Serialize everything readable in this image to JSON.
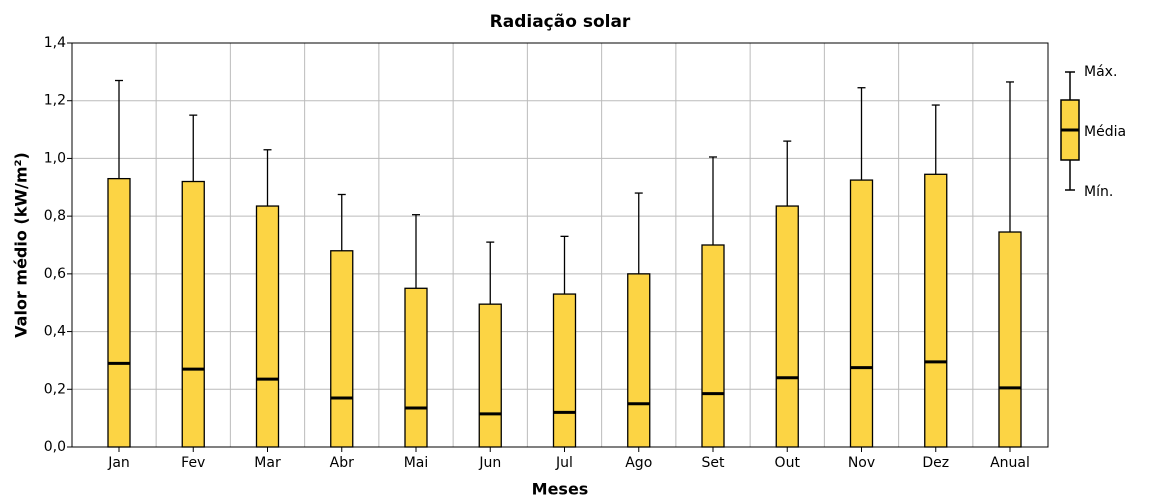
{
  "chart_data": {
    "type": "box",
    "title": "Radiação solar",
    "x_label": "Meses",
    "y_label": "Valor médio (kW/m²)",
    "categories": [
      "Jan",
      "Fev",
      "Mar",
      "Abr",
      "Mai",
      "Jun",
      "Jul",
      "Ago",
      "Set",
      "Out",
      "Nov",
      "Dez",
      "Anual"
    ],
    "min": [
      0,
      0,
      0,
      0,
      0,
      0,
      0,
      0,
      0,
      0,
      0,
      0,
      0
    ],
    "upper": [
      0.93,
      0.92,
      0.835,
      0.68,
      0.55,
      0.495,
      0.53,
      0.6,
      0.7,
      0.835,
      0.925,
      0.945,
      0.745
    ],
    "mean": [
      0.29,
      0.27,
      0.235,
      0.17,
      0.135,
      0.115,
      0.12,
      0.15,
      0.185,
      0.24,
      0.275,
      0.295,
      0.205
    ],
    "max": [
      1.27,
      1.15,
      1.03,
      0.875,
      0.805,
      0.71,
      0.73,
      0.88,
      1.005,
      1.06,
      1.245,
      1.185,
      1.265
    ],
    "color": "#fcd444",
    "ylim": [
      0,
      1.4
    ],
    "yticks": [
      {
        "value": 0,
        "label": "0,0"
      },
      {
        "value": 0.2,
        "label": "0,2"
      },
      {
        "value": 0.4,
        "label": "0,4"
      },
      {
        "value": 0.6,
        "label": "0,6"
      },
      {
        "value": 0.8,
        "label": "0,8"
      },
      {
        "value": 1,
        "label": "1,0"
      },
      {
        "value": 1.2,
        "label": "1,2"
      },
      {
        "value": 1.4,
        "label": "1,4"
      }
    ],
    "grid": true,
    "legend": [
      "Máx.",
      "Média",
      "Mín."
    ]
  }
}
